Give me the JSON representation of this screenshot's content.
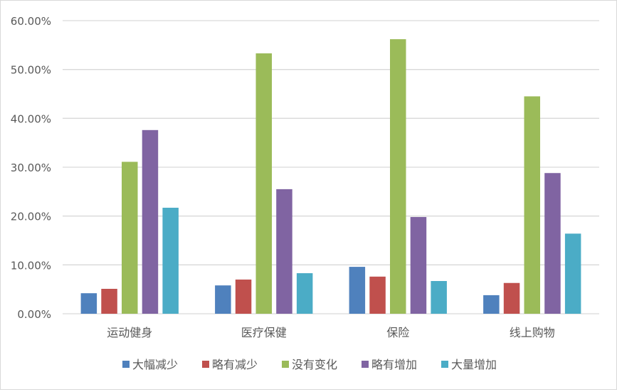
{
  "chart_data": {
    "type": "bar",
    "title": "",
    "xlabel": "",
    "ylabel": "",
    "categories": [
      "运动健身",
      "医疗保健",
      "保险",
      "线上购物"
    ],
    "ylim": [
      0,
      0.6
    ],
    "yticks": [
      "0.00%",
      "10.00%",
      "20.00%",
      "30.00%",
      "40.00%",
      "50.00%",
      "60.00%"
    ],
    "grid": true,
    "legend_position": "bottom",
    "series": [
      {
        "name": "大幅减少",
        "color": "#4f81bd",
        "values": [
          0.042,
          0.058,
          0.096,
          0.038
        ]
      },
      {
        "name": "略有减少",
        "color": "#c0504d",
        "values": [
          0.051,
          0.07,
          0.076,
          0.063
        ]
      },
      {
        "name": "没有变化",
        "color": "#9bbb59",
        "values": [
          0.311,
          0.533,
          0.562,
          0.445
        ]
      },
      {
        "name": "略有增加",
        "color": "#8064a2",
        "values": [
          0.376,
          0.255,
          0.198,
          0.288
        ]
      },
      {
        "name": "大量增加",
        "color": "#4bacc6",
        "values": [
          0.217,
          0.083,
          0.067,
          0.164
        ]
      }
    ]
  }
}
